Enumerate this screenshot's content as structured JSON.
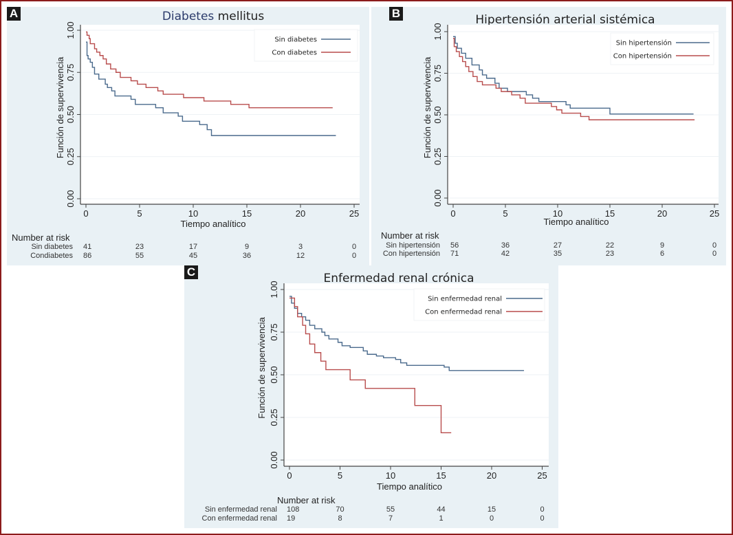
{
  "chart_data": [
    {
      "id": "A",
      "type": "line",
      "step": true,
      "panel_label": "A",
      "title": "Diabetes mellitus",
      "title_parts": [
        {
          "text": "Diabetes",
          "color": "#2b3b6b"
        },
        {
          "text": " mellitus",
          "color": "#222222"
        }
      ],
      "xlabel": "Tiempo analítico",
      "ylabel": "Función de supervivencia",
      "xlim": [
        0,
        25
      ],
      "ylim": [
        0,
        1
      ],
      "xticks": [
        0,
        5,
        10,
        15,
        20,
        25
      ],
      "yticks": [
        "0.00",
        "0.25",
        "0.50",
        "0.75",
        "1.00"
      ],
      "grid": true,
      "legend_position": "top-right",
      "series": [
        {
          "name": "Sin diabetes",
          "color": "#4a6a8c",
          "points": [
            [
              0,
              0.93
            ],
            [
              0.1,
              0.85
            ],
            [
              0.2,
              0.83
            ],
            [
              0.4,
              0.81
            ],
            [
              0.6,
              0.78
            ],
            [
              0.8,
              0.74
            ],
            [
              1.2,
              0.71
            ],
            [
              1.8,
              0.68
            ],
            [
              2.0,
              0.66
            ],
            [
              2.4,
              0.64
            ],
            [
              2.7,
              0.61
            ],
            [
              4.2,
              0.59
            ],
            [
              4.6,
              0.56
            ],
            [
              6.5,
              0.54
            ],
            [
              7.2,
              0.51
            ],
            [
              8.6,
              0.49
            ],
            [
              9.0,
              0.46
            ],
            [
              10.6,
              0.44
            ],
            [
              11.3,
              0.41
            ],
            [
              11.7,
              0.375
            ],
            [
              23.3,
              0.375
            ]
          ]
        },
        {
          "name": "Con diabetes",
          "color": "#b84c4c",
          "points": [
            [
              0,
              0.99
            ],
            [
              0.1,
              0.97
            ],
            [
              0.3,
              0.95
            ],
            [
              0.4,
              0.92
            ],
            [
              0.8,
              0.89
            ],
            [
              1.0,
              0.87
            ],
            [
              1.3,
              0.85
            ],
            [
              1.6,
              0.83
            ],
            [
              1.9,
              0.8
            ],
            [
              2.3,
              0.77
            ],
            [
              2.8,
              0.75
            ],
            [
              3.2,
              0.72
            ],
            [
              4.2,
              0.7
            ],
            [
              4.8,
              0.68
            ],
            [
              5.6,
              0.66
            ],
            [
              6.7,
              0.64
            ],
            [
              7.2,
              0.62
            ],
            [
              9.1,
              0.6
            ],
            [
              11.0,
              0.58
            ],
            [
              13.5,
              0.56
            ],
            [
              15.2,
              0.54
            ],
            [
              23.0,
              0.54
            ]
          ]
        }
      ],
      "risk_table": {
        "header": "Number at risk",
        "rows": [
          {
            "label": "Sin diabetes",
            "values": [
              41,
              23,
              17,
              9,
              3,
              0
            ]
          },
          {
            "label": "Condiabetes",
            "values": [
              86,
              55,
              45,
              36,
              12,
              0
            ]
          }
        ]
      }
    },
    {
      "id": "B",
      "type": "line",
      "step": true,
      "panel_label": "B",
      "title": "Hipertensión arterial sistémica",
      "title_parts": [
        {
          "text": "Hipertensión arterial sistémica",
          "color": "#222222"
        }
      ],
      "xlabel": "Tiempo analítico",
      "ylabel": "Función de supervivencia",
      "xlim": [
        0,
        25
      ],
      "ylim": [
        0,
        1
      ],
      "xticks": [
        0,
        5,
        10,
        15,
        20,
        25
      ],
      "yticks": [
        "0.00",
        "0.25",
        "0.50",
        "0.75",
        "1.00"
      ],
      "grid": true,
      "legend_position": "top-right",
      "series": [
        {
          "name": "Sin hipertensión",
          "color": "#4a6a8c",
          "points": [
            [
              0,
              0.97
            ],
            [
              0.2,
              0.93
            ],
            [
              0.4,
              0.9
            ],
            [
              0.8,
              0.87
            ],
            [
              1.2,
              0.84
            ],
            [
              1.8,
              0.8
            ],
            [
              2.5,
              0.77
            ],
            [
              2.8,
              0.74
            ],
            [
              3.2,
              0.72
            ],
            [
              4.0,
              0.69
            ],
            [
              4.4,
              0.66
            ],
            [
              5.2,
              0.64
            ],
            [
              7.0,
              0.62
            ],
            [
              7.6,
              0.6
            ],
            [
              8.2,
              0.58
            ],
            [
              10.8,
              0.56
            ],
            [
              11.2,
              0.54
            ],
            [
              15.0,
              0.505
            ],
            [
              23.0,
              0.505
            ]
          ]
        },
        {
          "name": "Con hipertensión",
          "color": "#b84c4c",
          "points": [
            [
              0,
              0.96
            ],
            [
              0.1,
              0.91
            ],
            [
              0.3,
              0.88
            ],
            [
              0.6,
              0.85
            ],
            [
              0.9,
              0.82
            ],
            [
              1.2,
              0.79
            ],
            [
              1.5,
              0.76
            ],
            [
              1.9,
              0.73
            ],
            [
              2.3,
              0.7
            ],
            [
              2.8,
              0.68
            ],
            [
              4.1,
              0.66
            ],
            [
              4.6,
              0.64
            ],
            [
              5.6,
              0.62
            ],
            [
              6.4,
              0.6
            ],
            [
              6.9,
              0.57
            ],
            [
              9.4,
              0.55
            ],
            [
              9.9,
              0.53
            ],
            [
              10.4,
              0.51
            ],
            [
              12.2,
              0.49
            ],
            [
              13.0,
              0.47
            ],
            [
              23.1,
              0.47
            ]
          ]
        }
      ],
      "risk_table": {
        "header": "Number at risk",
        "rows": [
          {
            "label": "Sin hipertensión",
            "values": [
              56,
              36,
              27,
              22,
              9,
              0
            ]
          },
          {
            "label": "Con hipertensión",
            "values": [
              71,
              42,
              35,
              23,
              6,
              0
            ]
          }
        ]
      }
    },
    {
      "id": "C",
      "type": "line",
      "step": true,
      "panel_label": "C",
      "title": "Enfermedad renal crónica",
      "title_parts": [
        {
          "text": "Enfermedad renal crónica",
          "color": "#222222"
        }
      ],
      "xlabel": "Tiempo analítico",
      "ylabel": "Función de supervivencia",
      "xlim": [
        0,
        25
      ],
      "ylim": [
        0,
        1
      ],
      "xticks": [
        0,
        5,
        10,
        15,
        20,
        25
      ],
      "yticks": [
        "0.00",
        "0.25",
        "0.50",
        "0.75",
        "1.00"
      ],
      "grid": true,
      "legend_position": "top-right",
      "series": [
        {
          "name": "Sin enfermedad renal",
          "color": "#4a6a8c",
          "points": [
            [
              0,
              0.96
            ],
            [
              0.2,
              0.92
            ],
            [
              0.5,
              0.89
            ],
            [
              0.8,
              0.86
            ],
            [
              1.2,
              0.84
            ],
            [
              1.6,
              0.82
            ],
            [
              2.0,
              0.79
            ],
            [
              2.5,
              0.77
            ],
            [
              3.2,
              0.75
            ],
            [
              3.5,
              0.73
            ],
            [
              3.9,
              0.71
            ],
            [
              4.8,
              0.69
            ],
            [
              5.2,
              0.67
            ],
            [
              6.0,
              0.66
            ],
            [
              7.3,
              0.64
            ],
            [
              7.7,
              0.62
            ],
            [
              8.6,
              0.61
            ],
            [
              9.3,
              0.6
            ],
            [
              10.5,
              0.59
            ],
            [
              11.0,
              0.57
            ],
            [
              11.6,
              0.555
            ],
            [
              15.3,
              0.545
            ],
            [
              15.8,
              0.525
            ],
            [
              23.2,
              0.525
            ]
          ]
        },
        {
          "name": "Con enfermedad renal",
          "color": "#b84c4c",
          "points": [
            [
              0,
              0.95
            ],
            [
              0.5,
              0.9
            ],
            [
              0.8,
              0.84
            ],
            [
              1.3,
              0.79
            ],
            [
              1.6,
              0.74
            ],
            [
              2.0,
              0.68
            ],
            [
              2.5,
              0.63
            ],
            [
              3.1,
              0.58
            ],
            [
              3.6,
              0.53
            ],
            [
              6.0,
              0.47
            ],
            [
              7.5,
              0.42
            ],
            [
              12.4,
              0.32
            ],
            [
              15.0,
              0.16
            ],
            [
              16.0,
              0.16
            ]
          ]
        }
      ],
      "risk_table": {
        "header": "Number at risk",
        "rows": [
          {
            "label": "Sin enfermedad renal",
            "values": [
              108,
              70,
              55,
              44,
              15,
              0
            ]
          },
          {
            "label": "Con enfermedad renal",
            "values": [
              19,
              8,
              7,
              1,
              0,
              0
            ]
          }
        ]
      }
    }
  ]
}
